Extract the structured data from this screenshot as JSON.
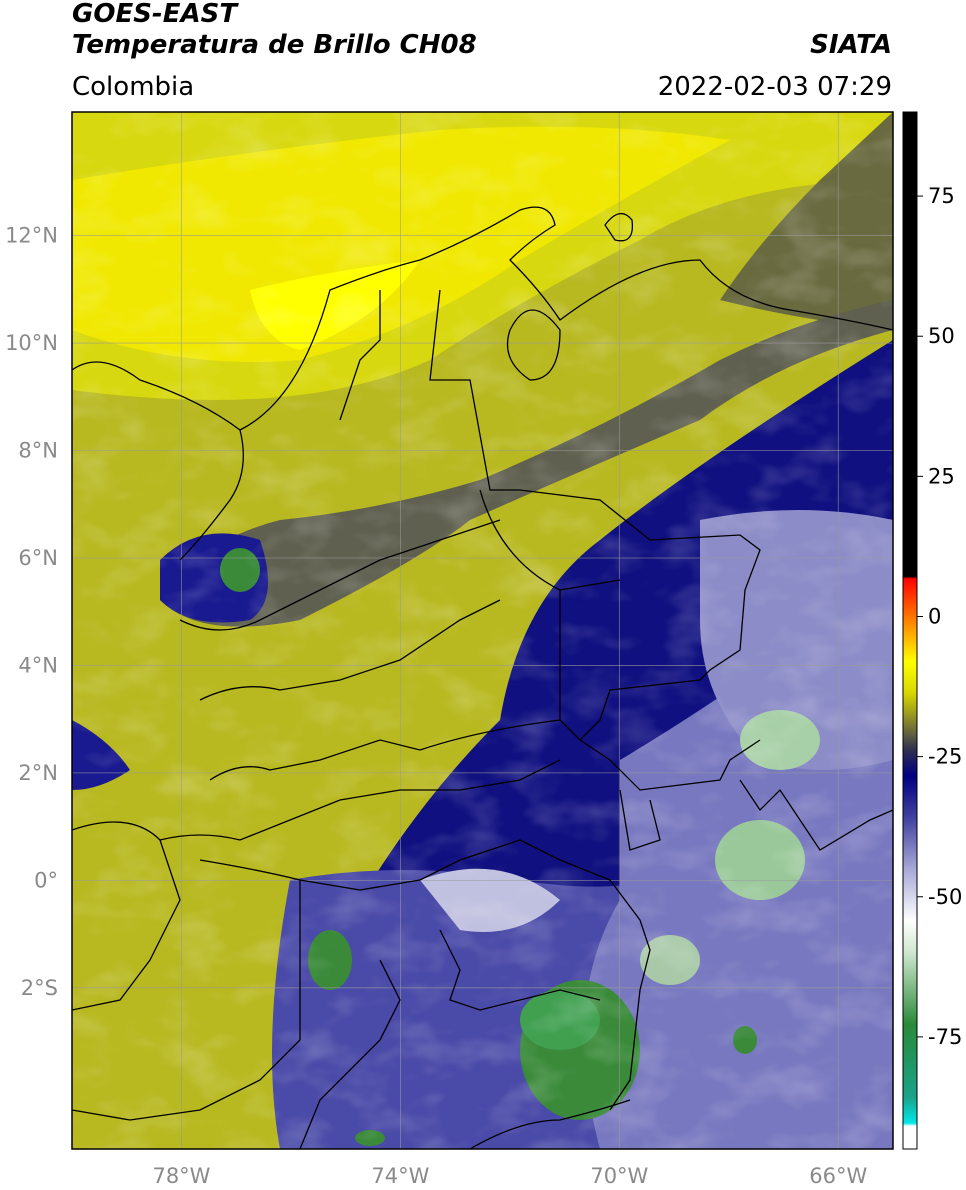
{
  "header": {
    "satellite": "GOES-EAST",
    "product": "Temperatura de Brillo CH08",
    "agency": "SIATA",
    "region": "Colombia",
    "timestamp": "2022-02-03 07:29"
  },
  "map": {
    "lon_range": [
      -80,
      -65
    ],
    "lat_range": [
      -5,
      14.3
    ],
    "lat_ticks": [
      "12°N",
      "10°N",
      "8°N",
      "6°N",
      "4°N",
      "2°N",
      "0°",
      "2°S"
    ],
    "lat_values": [
      12,
      10,
      8,
      6,
      4,
      2,
      0,
      -2
    ],
    "lon_ticks": [
      "78°W",
      "74°W",
      "70°W",
      "66°W"
    ],
    "lon_values": [
      -78,
      -74,
      -70,
      -66
    ],
    "gridlines": true
  },
  "colorbar": {
    "range": [
      -95,
      90
    ],
    "ticks": [
      "75",
      "50",
      "25",
      "0",
      "-25",
      "-50",
      "-75"
    ],
    "tick_values": [
      75,
      50,
      25,
      0,
      -25,
      -50,
      -75
    ],
    "colors": [
      "#ffffff",
      "#00e5e5",
      "#1a9b5b",
      "#2e8b2e",
      "#e8f4e8",
      "#ffffff",
      "#8080c0",
      "#000080",
      "#404040",
      "#ffff00",
      "#ffa500",
      "#ff0000",
      "#000000"
    ]
  }
}
